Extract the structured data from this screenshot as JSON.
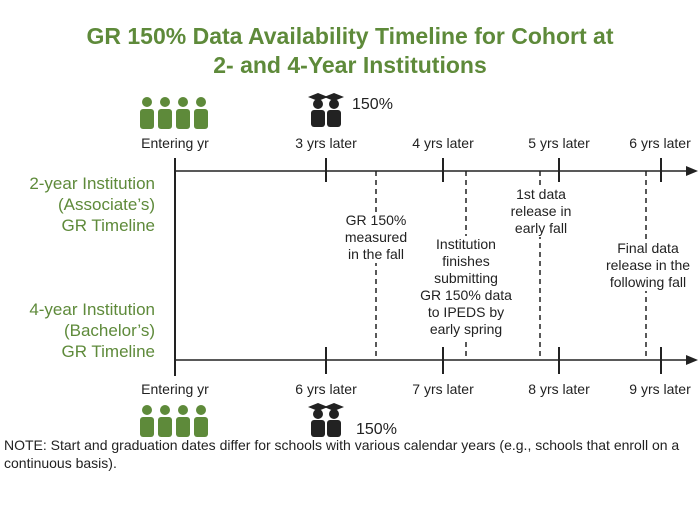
{
  "title_line1": "GR 150% Data Availability Timeline for Cohort at",
  "title_line2": "2- and 4-Year Institutions",
  "colors": {
    "accent": "#5e8a3a",
    "line": "#222222"
  },
  "top_timeline": {
    "ticks": [
      "Entering yr",
      "3 yrs later",
      "4 yrs later",
      "5 yrs later",
      "6 yrs later"
    ],
    "graduate_pct": "150%",
    "icons": [
      "entering-students-icon",
      "graduates-icon"
    ]
  },
  "bottom_timeline": {
    "ticks": [
      "Entering yr",
      "6 yrs later",
      "7 yrs later",
      "8 yrs later",
      "9 yrs later"
    ],
    "graduate_pct": "150%",
    "icons": [
      "entering-students-icon",
      "graduates-icon"
    ]
  },
  "row_labels": {
    "two_year": [
      "2-year Institution",
      "(Associate’s)",
      "GR Timeline"
    ],
    "four_year": [
      "4-year Institution",
      "(Bachelor’s)",
      "GR Timeline"
    ]
  },
  "annotations": {
    "measured": [
      "GR 150%",
      "measured",
      "in the fall"
    ],
    "submitting": [
      "Institution",
      "finishes",
      "submitting",
      "GR 150% data",
      "to IPEDS by",
      "early spring"
    ],
    "first_release": [
      "1st data",
      "release in",
      "early fall"
    ],
    "final_release": [
      "Final data",
      "release in the",
      "following fall"
    ]
  },
  "note": "NOTE: Start and graduation dates differ for schools with various calendar years (e.g., schools that enroll on a continuous basis)."
}
